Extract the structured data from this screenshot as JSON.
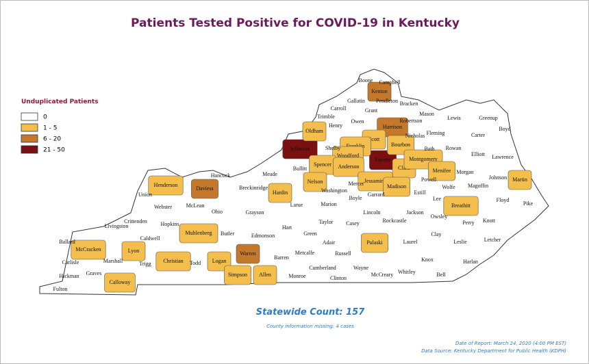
{
  "title": "Patients Tested Positive for COVID-19 in Kentucky",
  "legend": {
    "title": "Unduplicated Patients",
    "items": [
      {
        "label": "0",
        "color": "#ffffff"
      },
      {
        "label": "1 - 5",
        "color": "#f4be4c"
      },
      {
        "label": "6 - 20",
        "color": "#c4782c"
      },
      {
        "label": "21 - 50",
        "color": "#7b1010"
      }
    ]
  },
  "counties": [
    {
      "name": "Jefferson",
      "level": 3
    },
    {
      "name": "Fayette",
      "level": 3
    },
    {
      "name": "Kenton",
      "level": 2
    },
    {
      "name": "Harrison",
      "level": 2
    },
    {
      "name": "Daviess",
      "level": 2
    },
    {
      "name": "Warren",
      "level": 2
    },
    {
      "name": "Oldham",
      "level": 1
    },
    {
      "name": "Scott",
      "level": 1
    },
    {
      "name": "Franklin",
      "level": 1
    },
    {
      "name": "Bourbon",
      "level": 1
    },
    {
      "name": "Woodford",
      "level": 1
    },
    {
      "name": "Clark",
      "level": 1
    },
    {
      "name": "Montgomery",
      "level": 1
    },
    {
      "name": "Menifee",
      "level": 1
    },
    {
      "name": "Spencer",
      "level": 1
    },
    {
      "name": "Anderson",
      "level": 1
    },
    {
      "name": "Jessamine",
      "level": 1
    },
    {
      "name": "Madison",
      "level": 1
    },
    {
      "name": "Nelson",
      "level": 1
    },
    {
      "name": "Hardin",
      "level": 1
    },
    {
      "name": "Henderson",
      "level": 1
    },
    {
      "name": "Breathitt",
      "level": 1
    },
    {
      "name": "Martin",
      "level": 1
    },
    {
      "name": "Muhlenberg",
      "level": 1
    },
    {
      "name": "McCracken",
      "level": 1
    },
    {
      "name": "Lyon",
      "level": 1
    },
    {
      "name": "Christian",
      "level": 1
    },
    {
      "name": "Logan",
      "level": 1
    },
    {
      "name": "Simpson",
      "level": 1
    },
    {
      "name": "Allen",
      "level": 1
    },
    {
      "name": "Calloway",
      "level": 1
    },
    {
      "name": "Pulaski",
      "level": 1
    },
    {
      "name": "Boone",
      "level": 0
    },
    {
      "name": "Campbell",
      "level": 0
    },
    {
      "name": "Gallatin",
      "level": 0
    },
    {
      "name": "Pendleton",
      "level": 0
    },
    {
      "name": "Bracken",
      "level": 0
    },
    {
      "name": "Trimble",
      "level": 0
    },
    {
      "name": "Carroll",
      "level": 0
    },
    {
      "name": "Grant",
      "level": 0
    },
    {
      "name": "Owen",
      "level": 0
    },
    {
      "name": "Henry",
      "level": 0
    },
    {
      "name": "Mason",
      "level": 0
    },
    {
      "name": "Robertson",
      "level": 0
    },
    {
      "name": "Lewis",
      "level": 0
    },
    {
      "name": "Greenup",
      "level": 0
    },
    {
      "name": "Boyd",
      "level": 0
    },
    {
      "name": "Fleming",
      "level": 0
    },
    {
      "name": "Nicholas",
      "level": 0
    },
    {
      "name": "Carter",
      "level": 0
    },
    {
      "name": "Bath",
      "level": 0
    },
    {
      "name": "Rowan",
      "level": 0
    },
    {
      "name": "Elliott",
      "level": 0
    },
    {
      "name": "Lawrence",
      "level": 0
    },
    {
      "name": "Shelby",
      "level": 0
    },
    {
      "name": "Bullitt",
      "level": 0
    },
    {
      "name": "Morgan",
      "level": 0
    },
    {
      "name": "Johnson",
      "level": 0
    },
    {
      "name": "Magoffin",
      "level": 0
    },
    {
      "name": "Wolfe",
      "level": 0
    },
    {
      "name": "Powell",
      "level": 0
    },
    {
      "name": "Estill",
      "level": 0
    },
    {
      "name": "Lee",
      "level": 0
    },
    {
      "name": "Mercer",
      "level": 0
    },
    {
      "name": "Garrard",
      "level": 0
    },
    {
      "name": "Boyle",
      "level": 0
    },
    {
      "name": "Washington",
      "level": 0
    },
    {
      "name": "Marion",
      "level": 0
    },
    {
      "name": "Larue",
      "level": 0
    },
    {
      "name": "Meade",
      "level": 0
    },
    {
      "name": "Breckinridge",
      "level": 0
    },
    {
      "name": "Hancock",
      "level": 0
    },
    {
      "name": "Union",
      "level": 0
    },
    {
      "name": "Webster",
      "level": 0
    },
    {
      "name": "McLean",
      "level": 0
    },
    {
      "name": "Ohio",
      "level": 0
    },
    {
      "name": "Grayson",
      "level": 0
    },
    {
      "name": "Hopkins",
      "level": 0
    },
    {
      "name": "Caldwell",
      "level": 0
    },
    {
      "name": "Crittenden",
      "level": 0
    },
    {
      "name": "Livingston",
      "level": 0
    },
    {
      "name": "Ballard",
      "level": 0
    },
    {
      "name": "Carlisle",
      "level": 0
    },
    {
      "name": "Hickman",
      "level": 0
    },
    {
      "name": "Fulton",
      "level": 0
    },
    {
      "name": "Marshall",
      "level": 0
    },
    {
      "name": "Graves",
      "level": 0
    },
    {
      "name": "Trigg",
      "level": 0
    },
    {
      "name": "Todd",
      "level": 0
    },
    {
      "name": "Butler",
      "level": 0
    },
    {
      "name": "Edmonson",
      "level": 0
    },
    {
      "name": "Hart",
      "level": 0
    },
    {
      "name": "Green",
      "level": 0
    },
    {
      "name": "Taylor",
      "level": 0
    },
    {
      "name": "Casey",
      "level": 0
    },
    {
      "name": "Lincoln",
      "level": 0
    },
    {
      "name": "Rockcastle",
      "level": 0
    },
    {
      "name": "Jackson",
      "level": 0
    },
    {
      "name": "Owsley",
      "level": 0
    },
    {
      "name": "Perry",
      "level": 0
    },
    {
      "name": "Knott",
      "level": 0
    },
    {
      "name": "Floyd",
      "level": 0
    },
    {
      "name": "Pike",
      "level": 0
    },
    {
      "name": "Letcher",
      "level": 0
    },
    {
      "name": "Leslie",
      "level": 0
    },
    {
      "name": "Clay",
      "level": 0
    },
    {
      "name": "Laurel",
      "level": 0
    },
    {
      "name": "Knox",
      "level": 0
    },
    {
      "name": "Harlan",
      "level": 0
    },
    {
      "name": "Bell",
      "level": 0
    },
    {
      "name": "Whitley",
      "level": 0
    },
    {
      "name": "McCreary",
      "level": 0
    },
    {
      "name": "Wayne",
      "level": 0
    },
    {
      "name": "Russell",
      "level": 0
    },
    {
      "name": "Adair",
      "level": 0
    },
    {
      "name": "Metcalfe",
      "level": 0
    },
    {
      "name": "Cumberland",
      "level": 0
    },
    {
      "name": "Clinton",
      "level": 0
    },
    {
      "name": "Monroe",
      "level": 0
    },
    {
      "name": "Barren",
      "level": 0
    }
  ],
  "statewide": "Statewide Count: 157",
  "missing": "County information missing: 4 cases",
  "date": "Date of Report: March 24, 2020 (4:00 PM EST)",
  "source": "Data Source: Kentucky Department for Public Health (KDPH)"
}
